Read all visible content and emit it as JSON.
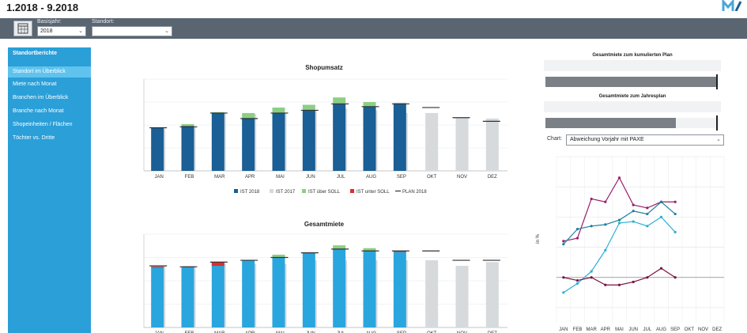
{
  "header": {
    "title": "1.2018 - 9.2018"
  },
  "toolbar": {
    "basisjahr_label": "Basisjahr:",
    "basisjahr_value": "2018",
    "standort_label": "Standort:",
    "standort_value": ""
  },
  "sidebar": {
    "heading": "Standortberichte",
    "items": [
      {
        "label": "Standort im Überblick",
        "active": true
      },
      {
        "label": "Miete nach Monat",
        "active": false
      },
      {
        "label": "Branchen im Überblick",
        "active": false
      },
      {
        "label": "Branche nach Monat",
        "active": false
      },
      {
        "label": "Shopeinheiten / Flächen",
        "active": false
      },
      {
        "label": "Töchter vs. Dritte",
        "active": false
      }
    ]
  },
  "progress": {
    "cumulative_title": "Gesamtmiete zum kumulierten Plan",
    "cumulative_fraction": 0.98,
    "annual_title": "Gesamtmiete zum Jahresplan",
    "annual_fraction": 0.75
  },
  "chart_select": {
    "label": "Chart:",
    "value": "Abweichung Vorjahr mit PAXE"
  },
  "colors": {
    "ist2018_shop": "#1a5f95",
    "ist2018_miete": "#2aa6de",
    "ist2017": "#d6dadd",
    "above": "#8ccf84",
    "below": "#e32b2b",
    "plan": "#333333",
    "sidebar": "#2a9fd8",
    "toolbar": "#5a6572"
  },
  "chart_data": [
    {
      "type": "bar",
      "title": "Shopumsatz",
      "categories": [
        "JAN",
        "FEB",
        "MAR",
        "APR",
        "MAI",
        "JUN",
        "JUL",
        "AUG",
        "SEP",
        "OKT",
        "NOV",
        "DEZ"
      ],
      "ylim": [
        0,
        100
      ],
      "series": [
        {
          "name": "IST 2018",
          "values": [
            47,
            49,
            63,
            57,
            63,
            66,
            73,
            70,
            73,
            null,
            null,
            null
          ]
        },
        {
          "name": "IST 2017",
          "values": [
            46,
            48,
            63,
            62,
            63,
            66,
            68,
            66,
            63,
            63,
            58,
            57
          ]
        },
        {
          "name": "IST über SOLL",
          "values": [
            0,
            2,
            1,
            6,
            6,
            6,
            7,
            5,
            1,
            0,
            0,
            0
          ]
        },
        {
          "name": "IST unter SOLL",
          "values": [
            0,
            0,
            0,
            0,
            0,
            0,
            0,
            0,
            0,
            0,
            0,
            0
          ]
        },
        {
          "name": "PLAN 2018",
          "values": [
            47,
            48,
            63,
            57,
            63,
            66,
            73,
            70,
            73,
            69,
            58,
            54
          ]
        }
      ],
      "legend_position": "bottom",
      "grid": true
    },
    {
      "type": "bar",
      "title": "Gesamtmiete",
      "categories": [
        "JAN",
        "FEB",
        "MAR",
        "APR",
        "MAI",
        "JUN",
        "JUL",
        "AUG",
        "SEP",
        "OKT",
        "NOV",
        "DEZ"
      ],
      "ylim": [
        0,
        100
      ],
      "series": [
        {
          "name": "IST 2018",
          "values": [
            65,
            65,
            70,
            72,
            75,
            80,
            84,
            82,
            82,
            null,
            null,
            null
          ]
        },
        {
          "name": "IST 2017",
          "values": [
            66,
            66,
            68,
            68,
            68,
            72,
            72,
            72,
            72,
            72,
            66,
            70
          ]
        },
        {
          "name": "IST über SOLL",
          "values": [
            0,
            0,
            0,
            0,
            3,
            0,
            4,
            3,
            0,
            0,
            0,
            0
          ]
        },
        {
          "name": "IST unter SOLL",
          "values": [
            1,
            0,
            4,
            0,
            0,
            0,
            0,
            0,
            1,
            0,
            0,
            0
          ]
        },
        {
          "name": "PLAN 2018",
          "values": [
            66,
            65,
            70,
            72,
            75,
            80,
            84,
            82,
            82,
            82,
            72,
            72
          ]
        }
      ],
      "grid": true
    },
    {
      "type": "line",
      "ylabel": "in %",
      "categories": [
        "JAN",
        "FEB",
        "MAR",
        "APR",
        "MAI",
        "JUN",
        "JUL",
        "AUG",
        "SEP",
        "OKT",
        "NOV",
        "DEZ"
      ],
      "ylim": [
        -15,
        40
      ],
      "series": [
        {
          "values": [
            12,
            13,
            26,
            25,
            33,
            24,
            23,
            25,
            25,
            null,
            null,
            null
          ]
        },
        {
          "values": [
            11,
            16,
            17,
            17.5,
            19,
            22,
            21,
            25,
            21,
            null,
            null,
            null
          ]
        },
        {
          "values": [
            -5,
            -2,
            2,
            9,
            18,
            18.5,
            17,
            20,
            15,
            null,
            null,
            null
          ]
        },
        {
          "values": [
            0,
            -1,
            0,
            -2.5,
            -2.5,
            -1.5,
            0,
            3,
            0,
            null,
            null,
            null
          ]
        }
      ],
      "series_colors": [
        "#9a1e6b",
        "#1e7f9e",
        "#2cb0d3",
        "#7a1440"
      ],
      "grid": true
    }
  ]
}
